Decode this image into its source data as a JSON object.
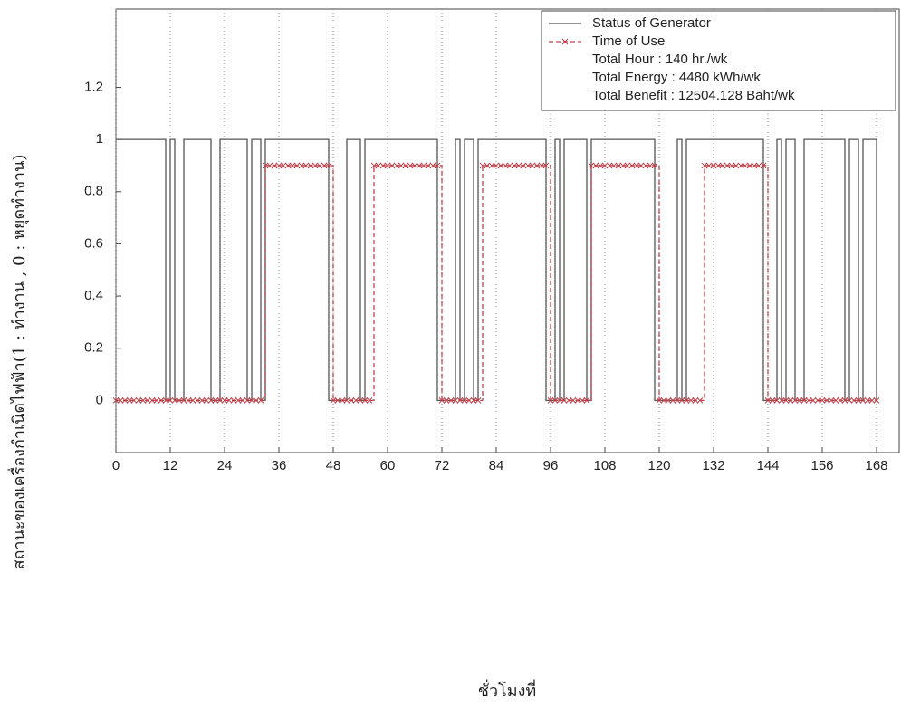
{
  "chart_data": {
    "type": "line",
    "xlabel": "ชั่วโมงที่",
    "ylabel": "สถานะของเครื่องกำเนิดไฟฟ้า(1 : ทำงาน , 0 : หยุดทำงาน)",
    "xlim": [
      0,
      173
    ],
    "ylim": [
      -0.2,
      1.5
    ],
    "xticks": [
      0,
      12,
      24,
      36,
      48,
      60,
      72,
      84,
      96,
      108,
      120,
      132,
      144,
      156,
      168
    ],
    "yticks": [
      0,
      0.2,
      0.4,
      0.6,
      0.8,
      1,
      1.2
    ],
    "grid": "x",
    "legend": "upper right",
    "annotations": [
      "Total Hour : 140 hr./wk",
      "Total Energy : 4480 kWh/wk",
      "Total Benefit  : 12504.128 Baht/wk"
    ],
    "series": [
      {
        "name": "Status of Generator",
        "color": "#555555",
        "style": "solid",
        "x": [
          0,
          11,
          12,
          13,
          15,
          21,
          23,
          29,
          30,
          32,
          33,
          47,
          51,
          54,
          55,
          71,
          75,
          76,
          77,
          79,
          80,
          95,
          97,
          98,
          99,
          104,
          105,
          119,
          124,
          125,
          126,
          143,
          146,
          147,
          148,
          150,
          152,
          161,
          162,
          164,
          165,
          168
        ],
        "values": [
          1,
          0,
          1,
          0,
          1,
          0,
          1,
          0,
          1,
          0,
          1,
          0,
          1,
          0,
          1,
          0,
          1,
          0,
          1,
          0,
          1,
          0,
          1,
          0,
          1,
          0,
          1,
          0,
          1,
          0,
          1,
          0,
          1,
          0,
          1,
          0,
          1,
          0,
          1,
          0,
          1,
          0
        ]
      },
      {
        "name": "Time of Use",
        "color": "#c0404a",
        "style": "dashed",
        "marker": "x",
        "x": [
          0,
          1,
          2,
          3,
          4,
          5,
          6,
          7,
          8,
          9,
          10,
          11,
          12,
          13,
          14,
          15,
          16,
          17,
          18,
          19,
          20,
          21,
          22,
          23,
          24,
          25,
          26,
          27,
          28,
          29,
          30,
          31,
          32,
          33,
          34,
          35,
          36,
          37,
          38,
          39,
          40,
          41,
          42,
          43,
          44,
          45,
          46,
          47,
          48,
          49,
          50,
          51,
          52,
          53,
          54,
          55,
          56,
          57,
          58,
          59,
          60,
          61,
          62,
          63,
          64,
          65,
          66,
          67,
          68,
          69,
          70,
          71,
          72,
          73,
          74,
          75,
          76,
          77,
          78,
          79,
          80,
          81,
          82,
          83,
          84,
          85,
          86,
          87,
          88,
          89,
          90,
          91,
          92,
          93,
          94,
          95,
          96,
          97,
          98,
          99,
          100,
          101,
          102,
          103,
          104,
          105,
          106,
          107,
          108,
          109,
          110,
          111,
          112,
          113,
          114,
          115,
          116,
          117,
          118,
          119,
          120,
          121,
          122,
          123,
          124,
          125,
          126,
          127,
          128,
          129,
          130,
          131,
          132,
          133,
          134,
          135,
          136,
          137,
          138,
          139,
          140,
          141,
          142,
          143,
          144,
          145,
          146,
          147,
          148,
          149,
          150,
          151,
          152,
          153,
          154,
          155,
          156,
          157,
          158,
          159,
          160,
          161,
          162,
          163,
          164,
          165,
          166,
          167,
          168
        ],
        "values": [
          0,
          0,
          0,
          0,
          0,
          0,
          0,
          0,
          0,
          0,
          0,
          0,
          0,
          0,
          0,
          0,
          0,
          0,
          0,
          0,
          0,
          0,
          0,
          0,
          0,
          0,
          0,
          0,
          0,
          0,
          0,
          0,
          0,
          0.9,
          0.9,
          0.9,
          0.9,
          0.9,
          0.9,
          0.9,
          0.9,
          0.9,
          0.9,
          0.9,
          0.9,
          0.9,
          0.9,
          0.9,
          0,
          0,
          0,
          0,
          0,
          0,
          0,
          0,
          0,
          0.9,
          0.9,
          0.9,
          0.9,
          0.9,
          0.9,
          0.9,
          0.9,
          0.9,
          0.9,
          0.9,
          0.9,
          0.9,
          0.9,
          0.9,
          0,
          0,
          0,
          0,
          0,
          0,
          0,
          0,
          0,
          0.9,
          0.9,
          0.9,
          0.9,
          0.9,
          0.9,
          0.9,
          0.9,
          0.9,
          0.9,
          0.9,
          0.9,
          0.9,
          0.9,
          0.9,
          0,
          0,
          0,
          0,
          0,
          0,
          0,
          0,
          0,
          0.9,
          0.9,
          0.9,
          0.9,
          0.9,
          0.9,
          0.9,
          0.9,
          0.9,
          0.9,
          0.9,
          0.9,
          0.9,
          0.9,
          0.9,
          0,
          0,
          0,
          0,
          0,
          0,
          0,
          0,
          0,
          0,
          0.9,
          0.9,
          0.9,
          0.9,
          0.9,
          0.9,
          0.9,
          0.9,
          0.9,
          0.9,
          0.9,
          0.9,
          0.9,
          0.9,
          0,
          0,
          0,
          0,
          0,
          0,
          0,
          0,
          0,
          0,
          0,
          0,
          0,
          0,
          0,
          0,
          0,
          0,
          0,
          0,
          0,
          0,
          0,
          0,
          0
        ]
      }
    ]
  }
}
